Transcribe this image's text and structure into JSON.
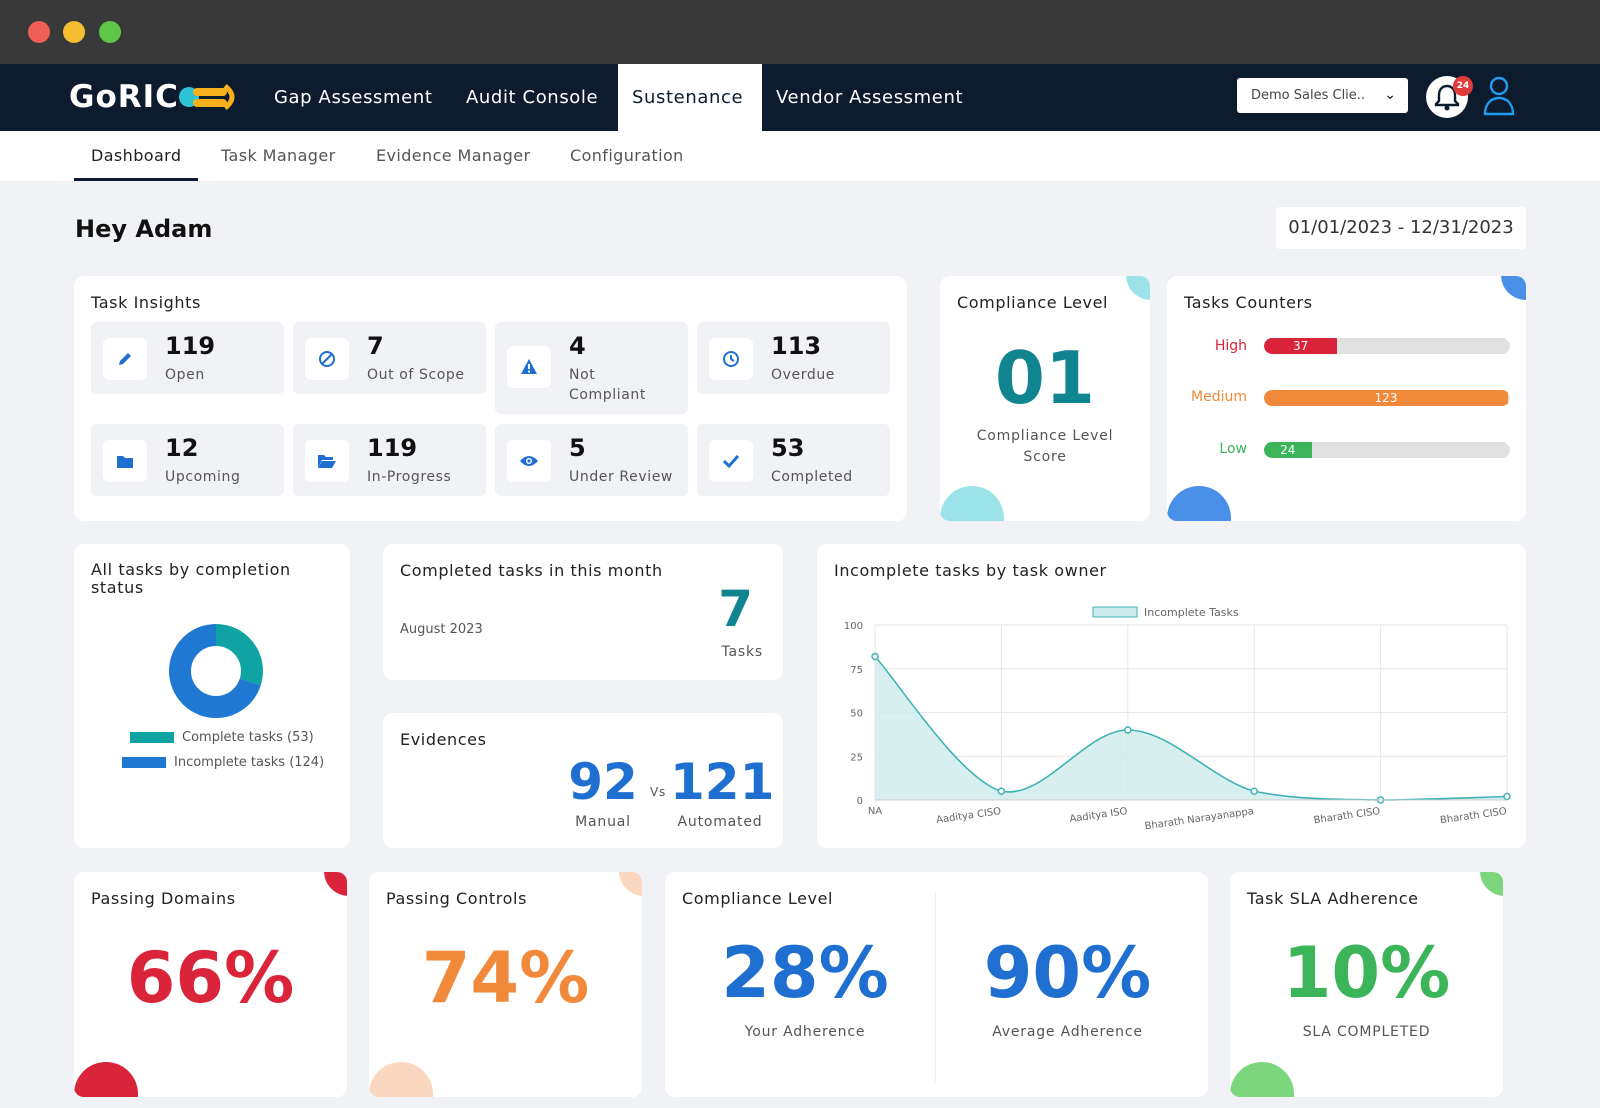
{
  "brand": {
    "logo_text": "GoRIC"
  },
  "main_nav": {
    "tabs": [
      {
        "label": "Gap Assessment"
      },
      {
        "label": "Audit Console"
      },
      {
        "label": "Sustenance"
      },
      {
        "label": "Vendor Assessment"
      }
    ],
    "active": "Sustenance",
    "client_select": "Demo Sales Clie..",
    "notifications_count": "24"
  },
  "sub_nav": {
    "tabs": [
      {
        "label": "Dashboard"
      },
      {
        "label": "Task Manager"
      },
      {
        "label": "Evidence Manager"
      },
      {
        "label": "Configuration"
      }
    ],
    "active": "Dashboard"
  },
  "greeting": "Hey Adam",
  "date_range": "01/01/2023 - 12/31/2023",
  "task_insights": {
    "title": "Task Insights",
    "items": [
      {
        "count": "119",
        "label": "Open",
        "icon": "pencil-icon"
      },
      {
        "count": "7",
        "label": "Out of Scope",
        "icon": "ban-icon"
      },
      {
        "count": "4",
        "label": "Not Compliant",
        "icon": "warning-icon"
      },
      {
        "count": "113",
        "label": "Overdue",
        "icon": "clock-icon"
      },
      {
        "count": "12",
        "label": "Upcoming",
        "icon": "folder-icon"
      },
      {
        "count": "119",
        "label": "In-Progress",
        "icon": "folder-open-icon"
      },
      {
        "count": "5",
        "label": "Under Review",
        "icon": "eye-icon"
      },
      {
        "count": "53",
        "label": "Completed",
        "icon": "check-icon"
      }
    ]
  },
  "compliance_level_score": {
    "title": "Compliance Level",
    "value": "01",
    "label": "Compliance Level Score"
  },
  "task_counters": {
    "title": "Tasks Counters",
    "max": 124,
    "items": [
      {
        "label": "High",
        "value": 37,
        "value_text": "37",
        "color": "#d9243a"
      },
      {
        "label": "Medium",
        "value": 123,
        "value_text": "123",
        "color": "#f08a3a"
      },
      {
        "label": "Low",
        "value": 24,
        "value_text": "24",
        "color": "#3cb55a"
      }
    ]
  },
  "completion_status": {
    "title": "All tasks by completion status",
    "legend": [
      {
        "label": "Complete tasks (53)",
        "color": "#0fa3a3"
      },
      {
        "label": "Incomplete tasks (124)",
        "color": "#1f78d1"
      }
    ]
  },
  "completed_month": {
    "title": "Completed tasks in this month",
    "period": "August 2023",
    "value": "7",
    "unit": "Tasks"
  },
  "evidences": {
    "title": "Evidences",
    "manual_value": "92",
    "manual_label": "Manual",
    "vs": "Vs",
    "automated_value": "121",
    "automated_label": "Automated"
  },
  "incomplete_owner": {
    "title": "Incomplete tasks by task owner"
  },
  "passing_domains": {
    "title": "Passing Domains",
    "value": "66%",
    "color": "#d9243a"
  },
  "passing_controls": {
    "title": "Passing Controls",
    "value": "74%",
    "color": "#f08a3a"
  },
  "compliance_adherence": {
    "title": "Compliance Level",
    "your_value": "28%",
    "your_label": "Your Adherence",
    "avg_value": "90%",
    "avg_label": "Average Adherence"
  },
  "sla": {
    "title": "Task SLA Adherence",
    "value": "10%",
    "label": "SLA COMPLETED",
    "color": "#3cb55a"
  },
  "chart_data": [
    {
      "type": "pie",
      "labels": [
        "Complete tasks (53)",
        "Incomplete tasks (124)"
      ],
      "values": [
        53,
        124
      ],
      "colors": [
        "#0fa3a3",
        "#1f78d1"
      ]
    },
    {
      "type": "area",
      "categories": [
        "NA",
        "Aaditya CISO",
        "Aaditya ISO",
        "Bharath Narayanappa",
        "Bharath CISO",
        "Bharath CISO"
      ],
      "series": [
        {
          "name": "Incomplete Tasks",
          "values": [
            82,
            5,
            40,
            5,
            0,
            2
          ]
        }
      ],
      "ylim": [
        0,
        100
      ],
      "yticks": [
        "0",
        "25",
        "50",
        "75",
        "100"
      ],
      "color": "#3fb3b3",
      "grid": true,
      "legend": "top"
    }
  ]
}
